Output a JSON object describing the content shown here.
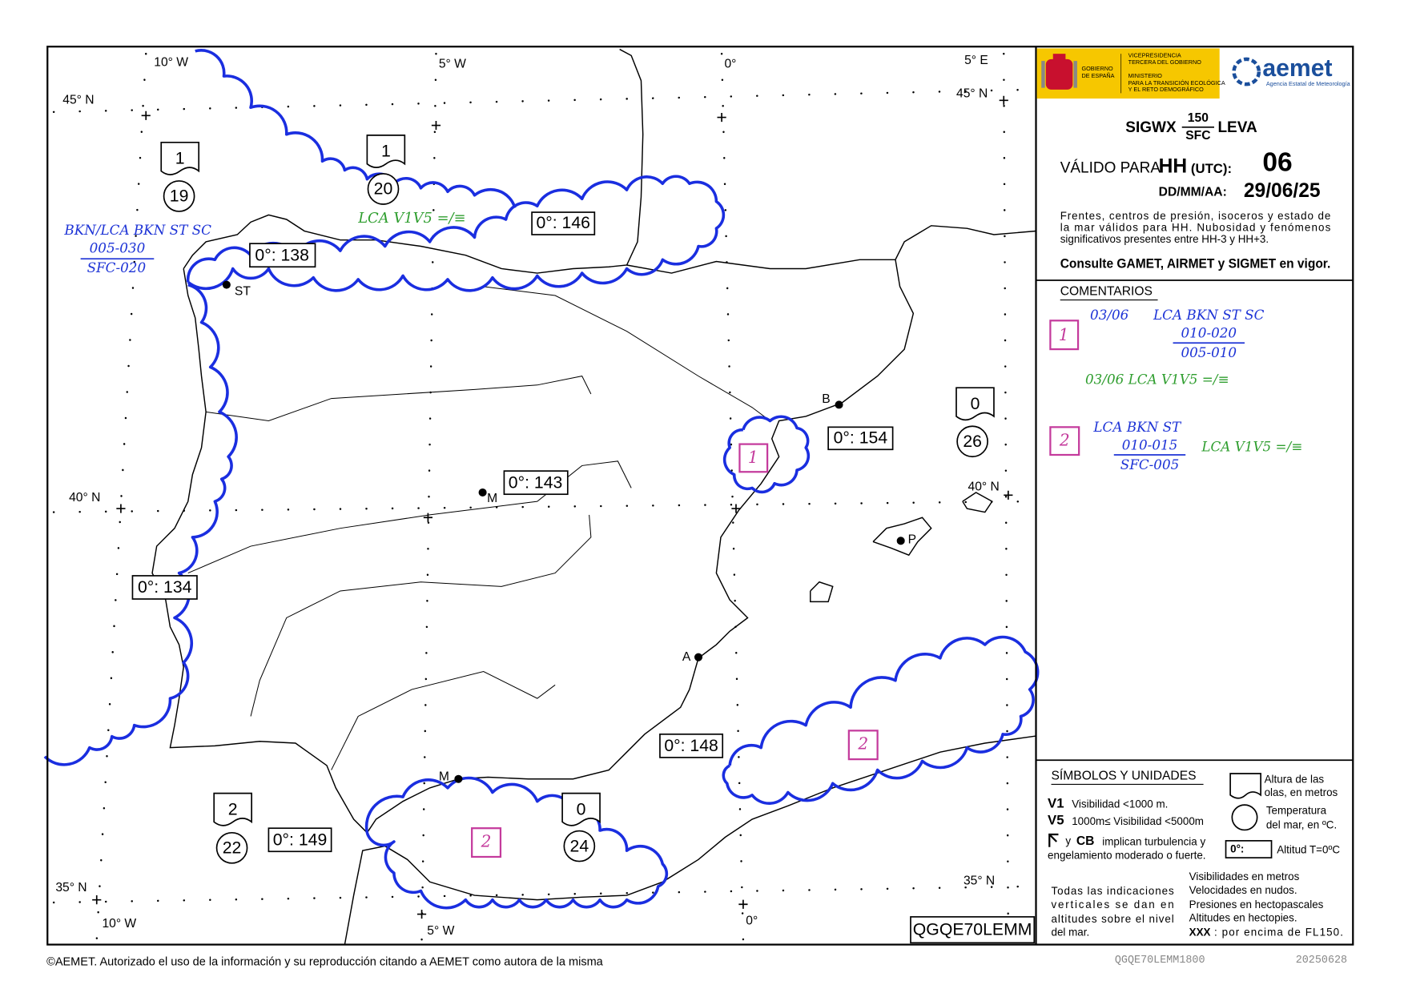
{
  "map": {
    "graticule_labels": [
      "10° W",
      "5° W",
      "0°",
      "5° E",
      "45° N",
      "45° N",
      "40° N",
      "40° N",
      "35° N",
      "35° N",
      "10° W",
      "5° W",
      "0°"
    ],
    "cities": [
      "ST",
      "M",
      "B",
      "A",
      "P",
      "M"
    ],
    "freezing_levels": [
      "0°: 138",
      "0°: 146",
      "0°: 143",
      "0°: 154",
      "0°: 134",
      "0°: 148",
      "0°: 149"
    ],
    "sea_states": [
      {
        "waves": 1,
        "temp": 19
      },
      {
        "waves": 1,
        "temp": 20
      },
      {
        "waves": 0,
        "temp": 26
      },
      {
        "waves": 2,
        "temp": 22
      },
      {
        "waves": 0,
        "temp": 24
      }
    ],
    "area_labels": [
      "1",
      "2",
      "2"
    ],
    "annotation": {
      "cloud": "BKN/LCA BKN ST SC",
      "upper": "005-030",
      "lower": "SFC-020"
    },
    "weather": "LCA  V1V5 =/≡",
    "code": "QGQE70LEMM"
  },
  "header": {
    "gov": [
      "GOBIERNO",
      "DE ESPAÑA"
    ],
    "vice": [
      "VICEPRESIDENCIA",
      "TERCERA DEL GOBIERNO"
    ],
    "ministry": [
      "MINISTERIO",
      "PARA LA TRANSICIÓN ECOLÓGICA",
      "Y EL RETO DEMOGRÁFICO"
    ],
    "brand": "aemet",
    "agency": "Agencia Estatal de Meteorología",
    "product": "SIGWX",
    "top_level": "150",
    "bottom_level": "SFC",
    "region": "LEVA",
    "valid_label": "VÁLIDO PARA",
    "hh": "HH",
    "utc": "(UTC):",
    "hour": "06",
    "date_label": "DD/MM/AA:",
    "date": "29/06/25",
    "description": [
      "Frentes, centros de presión, isoceros y estado de",
      "la mar válidos para HH. Nubosidad y fenómenos",
      "significativos presentes entre HH-3 y HH+3."
    ],
    "consult": "Consulte GAMET, AIRMET y SIGMET en vigor."
  },
  "comments": {
    "title": "COMENTARIOS",
    "items": [
      {
        "id": "1",
        "time": "03/06",
        "cloud": "LCA BKN ST SC",
        "upper": "010-020",
        "lower": "005-010",
        "weather": "03/06 LCA  V1V5 =/≡"
      },
      {
        "id": "2",
        "cloud": "LCA BKN ST",
        "upper": "010-015",
        "lower": "SFC-005",
        "weather": "LCA  V1V5 =/≡"
      }
    ]
  },
  "legend": {
    "title": "SÍMBOLOS Y UNIDADES",
    "waves": [
      "Altura de las",
      "olas, en metros"
    ],
    "v1": "V1",
    "v1_text": "Visibilidad <1000 m.",
    "v5": "V5",
    "v5_text": "1000m≤ Visibilidad <5000m",
    "sea_temp": [
      "Temperatura",
      "del mar, en ºC."
    ],
    "turb_y": "y",
    "cb": "CB",
    "turb_text": [
      "implican turbulencia y",
      "engelamiento moderado o fuerte."
    ],
    "freezing_box": "0°:",
    "freezing_text": "Altitud T=0ºC",
    "notes_left": [
      "Todas las indicaciones",
      "verticales se dan en",
      "altitudes sobre el nivel",
      "del mar."
    ],
    "notes_right": [
      "Visibilidades en metros",
      "Velocidades en nudos.",
      "Presiones en hectopascales",
      "Altitudes en hectopies."
    ],
    "xxx": "XXX",
    "xxx_text": ": por encima de FL150."
  },
  "footer": {
    "copyright": "©AEMET. Autorizado el uso de la información y su reproducción citando a AEMET como autora de la misma",
    "file": "QGQE70LEMM1800",
    "stamp": "20250628"
  }
}
